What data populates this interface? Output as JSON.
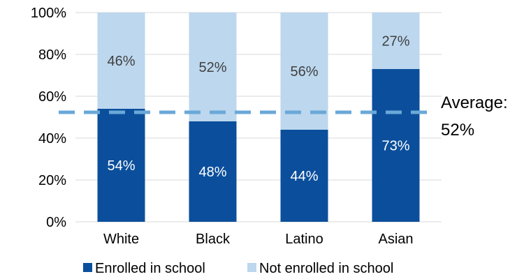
{
  "chart_data": {
    "type": "bar",
    "stacked": true,
    "categories": [
      "White",
      "Black",
      "Latino",
      "Asian"
    ],
    "series": [
      {
        "name": "Enrolled in school",
        "values": [
          54,
          48,
          44,
          73
        ],
        "color": "#0b4f9c",
        "labels": [
          "54%",
          "48%",
          "44%",
          "73%"
        ]
      },
      {
        "name": "Not enrolled in school",
        "values": [
          46,
          52,
          56,
          27
        ],
        "color": "#bcd7ee",
        "labels": [
          "46%",
          "52%",
          "56%",
          "27%"
        ]
      }
    ],
    "ylim": [
      0,
      100
    ],
    "yticks": [
      "0%",
      "20%",
      "40%",
      "60%",
      "80%",
      "100%"
    ],
    "average": {
      "value": 52,
      "label_line1": "Average:",
      "label_line2": "52%",
      "color": "#6aa8d8"
    },
    "gridlines": true,
    "legend_position": "bottom",
    "title": "",
    "xlabel": "",
    "ylabel": ""
  }
}
